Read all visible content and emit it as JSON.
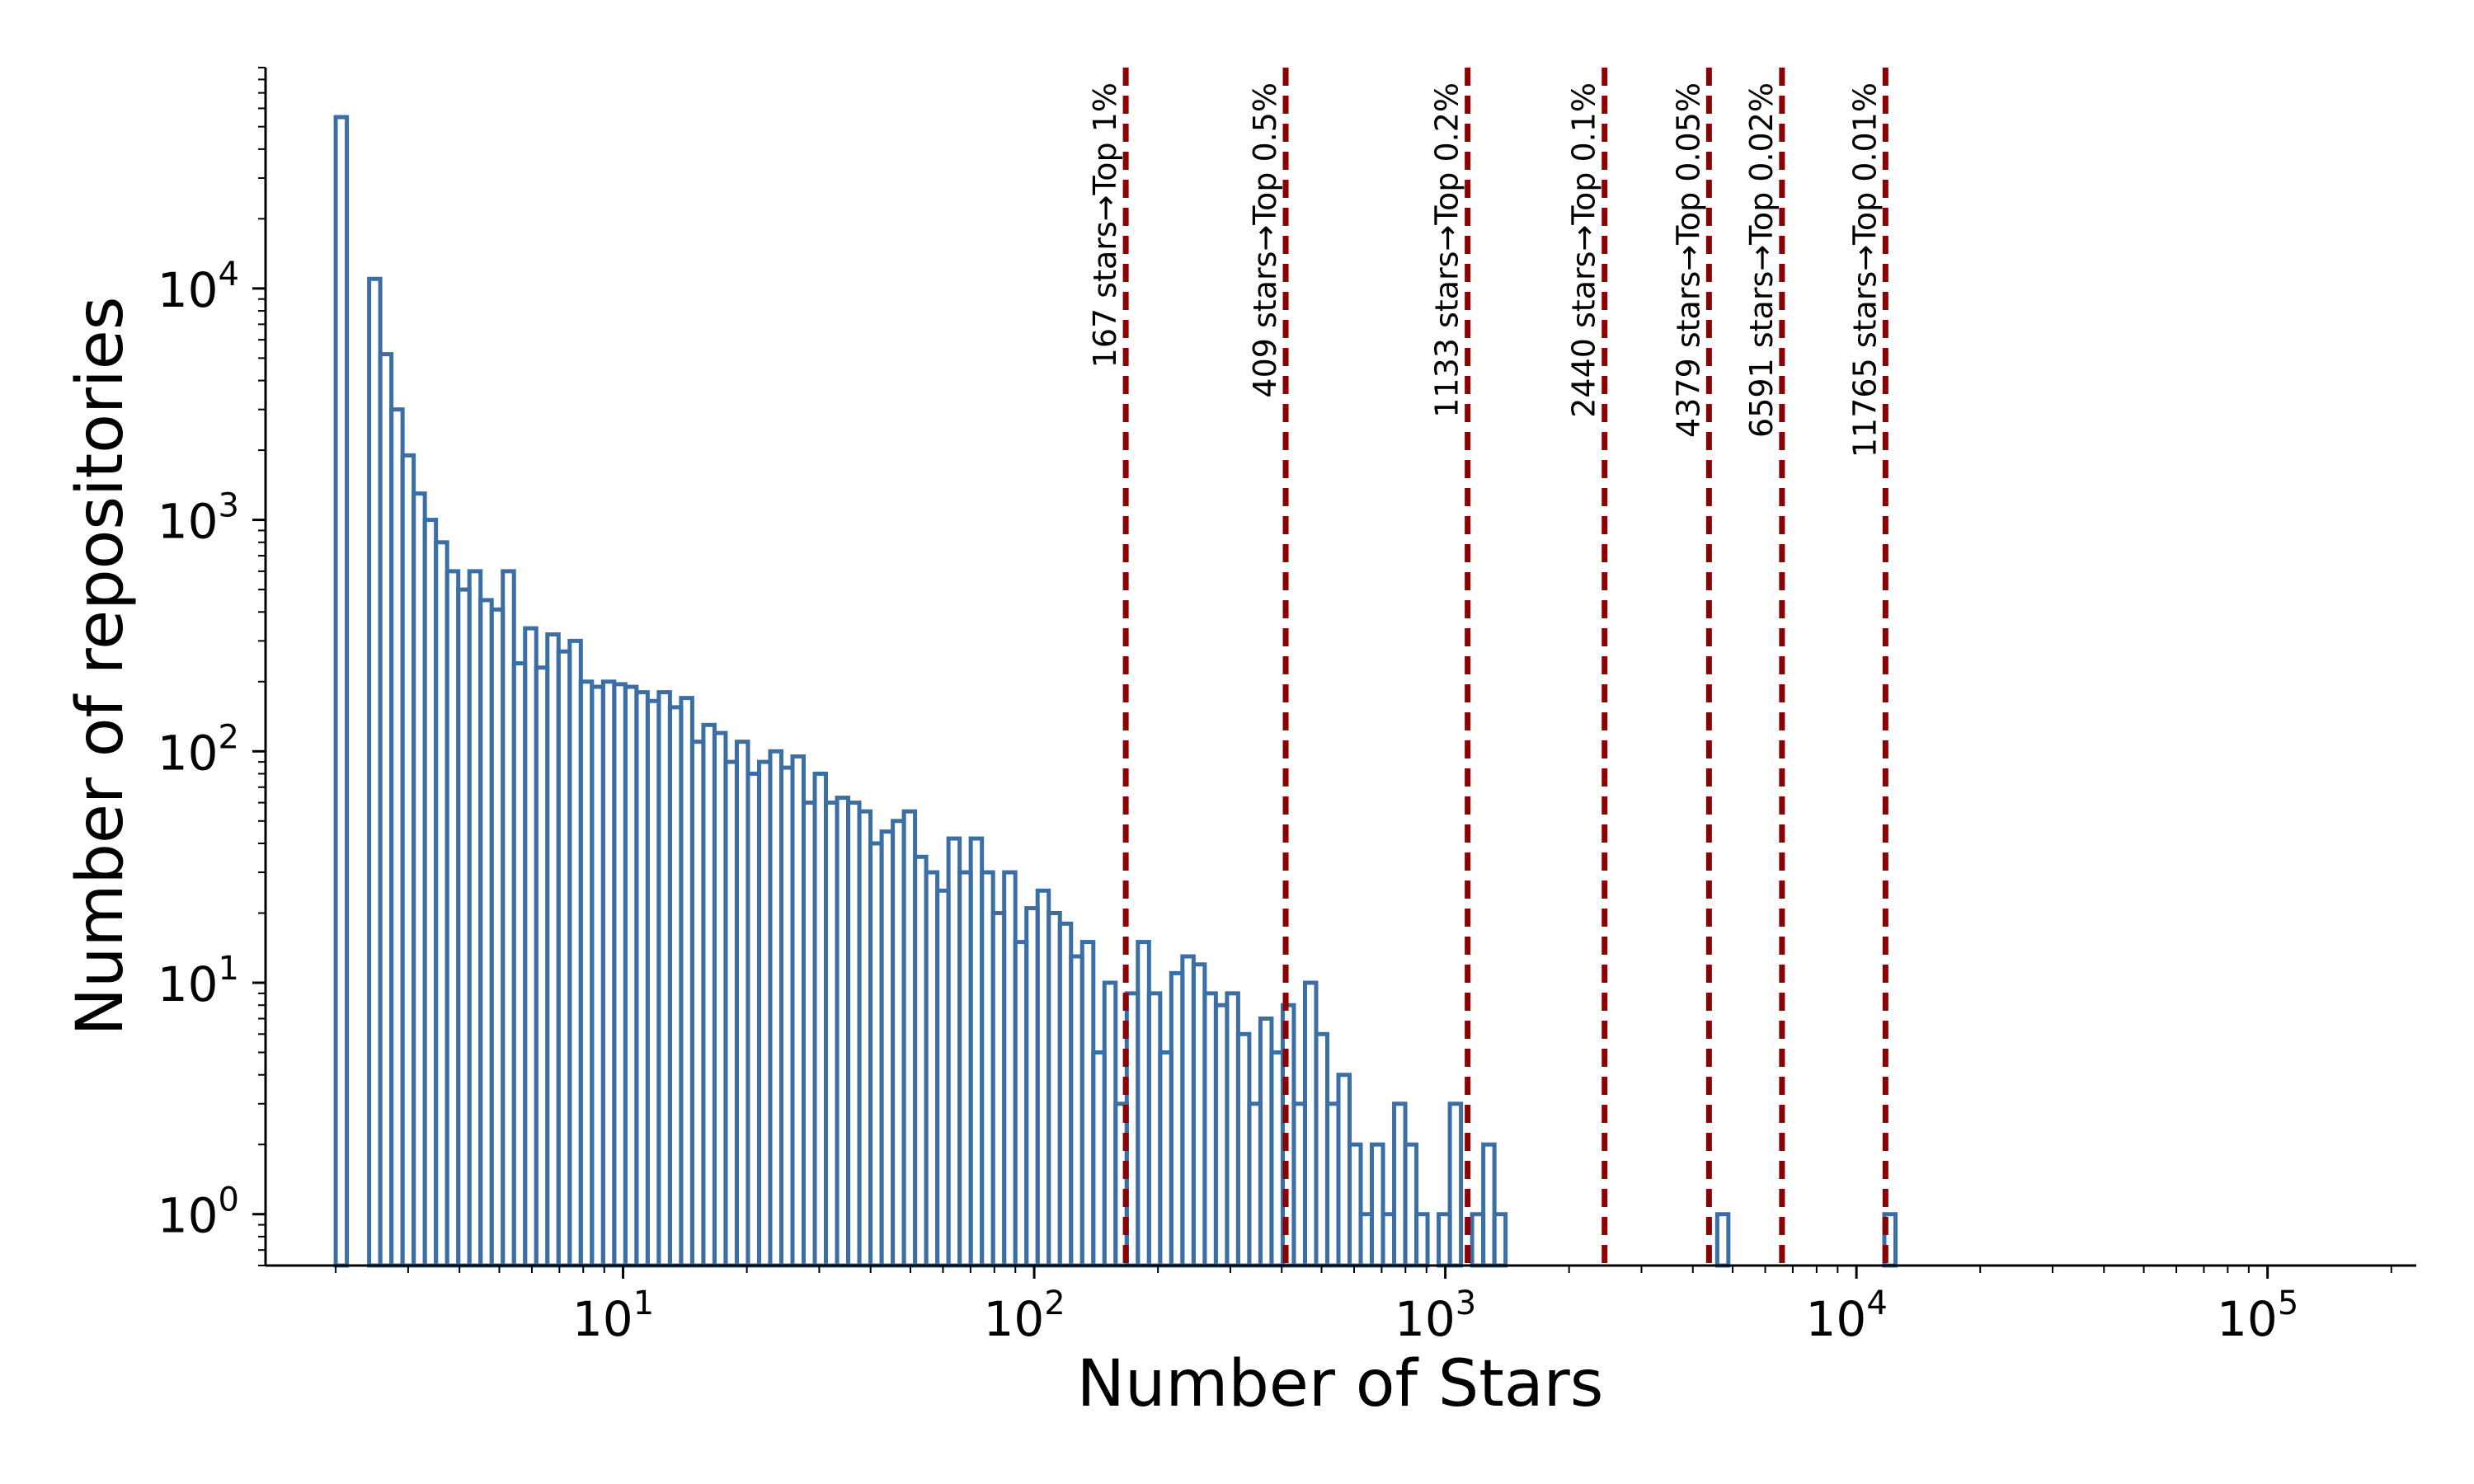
{
  "chart_data": {
    "type": "histogram",
    "xlabel": "Number of Stars",
    "ylabel": "Number of repositories",
    "xscale": "log",
    "yscale": "log",
    "xlim": [
      1.35,
      230000
    ],
    "ylim": [
      0.6,
      90000
    ],
    "x_ticks": [
      {
        "base": "10",
        "exp": "1",
        "value": 10
      },
      {
        "base": "10",
        "exp": "2",
        "value": 100
      },
      {
        "base": "10",
        "exp": "3",
        "value": 1000
      },
      {
        "base": "10",
        "exp": "4",
        "value": 10000
      },
      {
        "base": "10",
        "exp": "5",
        "value": 100000
      }
    ],
    "y_ticks": [
      {
        "base": "10",
        "exp": "0",
        "value": 1
      },
      {
        "base": "10",
        "exp": "1",
        "value": 10
      },
      {
        "base": "10",
        "exp": "2",
        "value": 100
      },
      {
        "base": "10",
        "exp": "3",
        "value": 1000
      },
      {
        "base": "10",
        "exp": "4",
        "value": 10000
      }
    ],
    "bin_edges_log10": {
      "start": 0.301,
      "step": 0.0271,
      "count": 140
    },
    "counts": [
      55000,
      0,
      0,
      11000,
      5200,
      3000,
      1900,
      1300,
      1000,
      800,
      600,
      500,
      600,
      450,
      410,
      600,
      240,
      340,
      230,
      320,
      270,
      300,
      200,
      190,
      200,
      195,
      190,
      180,
      165,
      180,
      155,
      170,
      110,
      130,
      120,
      90,
      110,
      80,
      90,
      100,
      85,
      95,
      60,
      80,
      60,
      63,
      60,
      55,
      40,
      45,
      50,
      55,
      35,
      30,
      25,
      42,
      30,
      42,
      30,
      20,
      30,
      15,
      21,
      25,
      20,
      18,
      13,
      15,
      5,
      10,
      3,
      9,
      15,
      9,
      5,
      11,
      13,
      12,
      9,
      8,
      9,
      6,
      3,
      7,
      5,
      8,
      3,
      10,
      6,
      3,
      4,
      2,
      1,
      2,
      1,
      3,
      2,
      1,
      0,
      1,
      3,
      0,
      1,
      2,
      1,
      0,
      0,
      0,
      0,
      0,
      0,
      0,
      0,
      0,
      0,
      0,
      0,
      0,
      0,
      0,
      0,
      0,
      0,
      0,
      1,
      0,
      0,
      0,
      0,
      0,
      0,
      0,
      0,
      0,
      0,
      0,
      0,
      0,
      0,
      1
    ],
    "thresholds": [
      {
        "x": 167,
        "label": "167 stars→Top 1%"
      },
      {
        "x": 409,
        "label": "409 stars→Top 0.5%"
      },
      {
        "x": 1133,
        "label": "1133 stars→Top 0.2%"
      },
      {
        "x": 2440,
        "label": "2440 stars→Top 0.1%"
      },
      {
        "x": 4379,
        "label": "4379 stars→Top 0.05%"
      },
      {
        "x": 6591,
        "label": "6591 stars→Top 0.02%"
      },
      {
        "x": 11765,
        "label": "11765 stars→Top 0.01%"
      }
    ],
    "colors": {
      "bar_edge": "#3b6ea5",
      "threshold": "#8b0000",
      "axis": "#000000"
    },
    "grid": false
  }
}
